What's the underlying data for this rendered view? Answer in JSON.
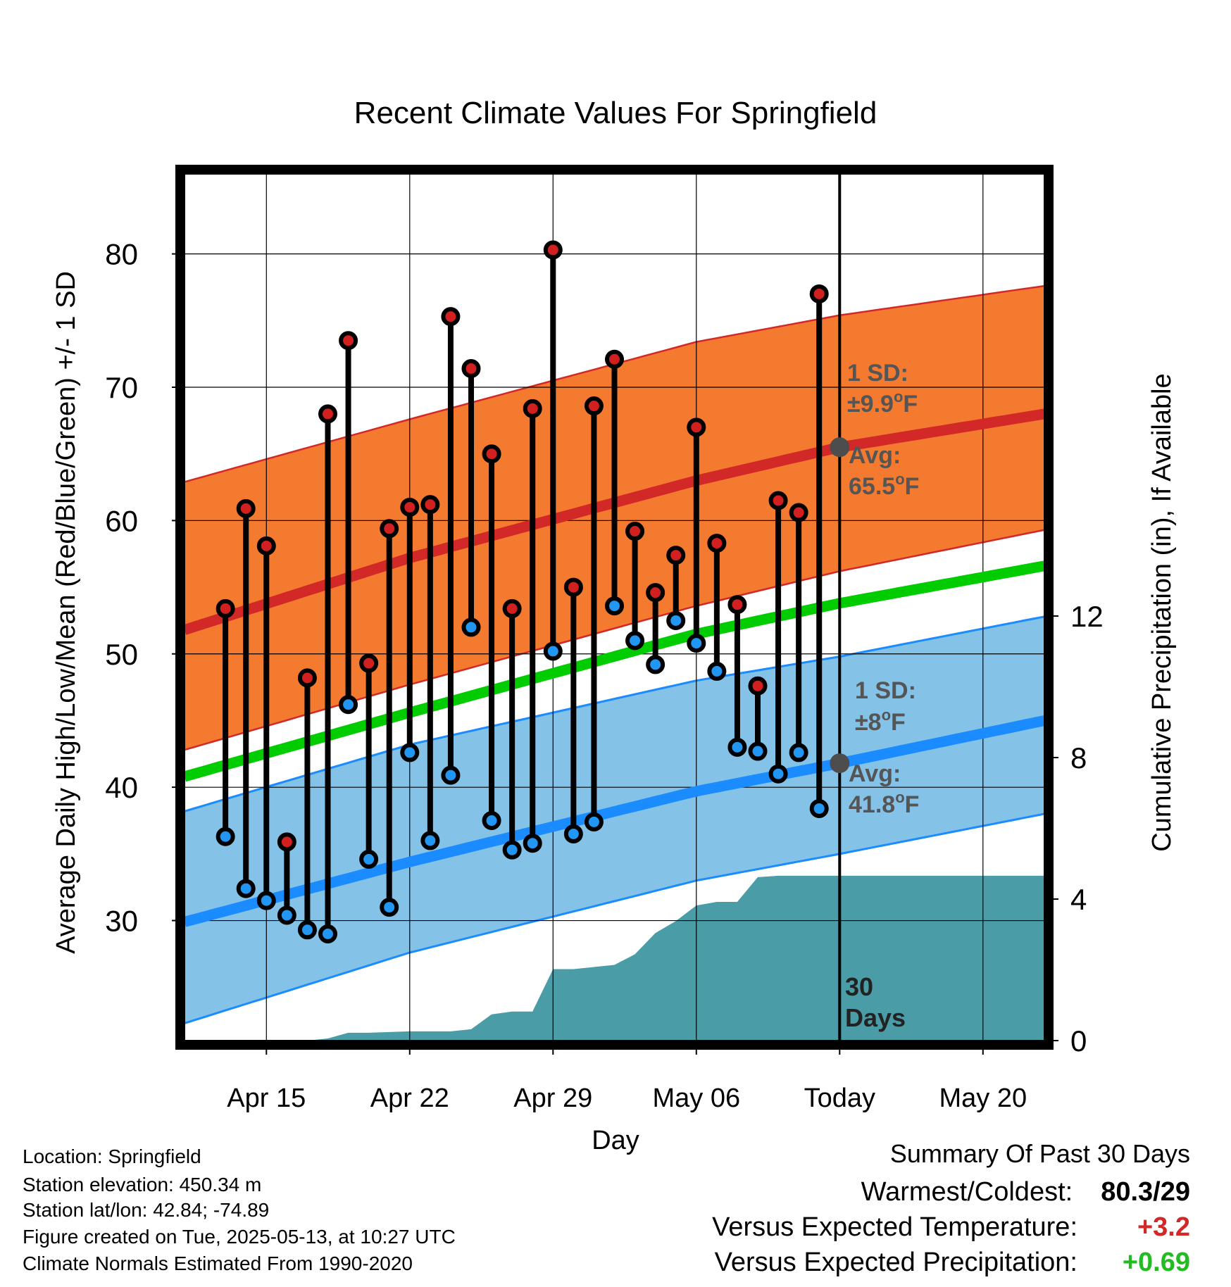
{
  "chart_data": {
    "type": "line",
    "title": "Recent Climate Values For Springfield",
    "xlabel": "Day",
    "ylabel": "Average Daily High/Low/Mean (Red/Blue/Green) +/- 1 SD",
    "y2label": "Cumulative Precipitation (in), If Available",
    "ylim": [
      21,
      86
    ],
    "y2lim": [
      0,
      24.5
    ],
    "yticks": [
      30,
      40,
      50,
      60,
      70,
      80
    ],
    "y2ticks": [
      0,
      4,
      8,
      12
    ],
    "x_range": [
      "2025-04-11",
      "2025-05-23"
    ],
    "x_ticks": [
      {
        "date": "2025-04-15",
        "label": "Apr 15"
      },
      {
        "date": "2025-04-22",
        "label": "Apr 22"
      },
      {
        "date": "2025-04-29",
        "label": "Apr 29"
      },
      {
        "date": "2025-05-06",
        "label": "May 06"
      },
      {
        "date": "2025-05-13",
        "label": "Today"
      },
      {
        "date": "2025-05-20",
        "label": "May 20"
      }
    ],
    "today": "2025-05-13",
    "period_label": "30\nDays",
    "daily_high": [
      {
        "date": "2025-04-13",
        "value": 53.4
      },
      {
        "date": "2025-04-14",
        "value": 60.9
      },
      {
        "date": "2025-04-15",
        "value": 58.1
      },
      {
        "date": "2025-04-16",
        "value": 35.9
      },
      {
        "date": "2025-04-17",
        "value": 48.2
      },
      {
        "date": "2025-04-18",
        "value": 68.0
      },
      {
        "date": "2025-04-19",
        "value": 73.5
      },
      {
        "date": "2025-04-20",
        "value": 49.3
      },
      {
        "date": "2025-04-21",
        "value": 59.4
      },
      {
        "date": "2025-04-22",
        "value": 61.0
      },
      {
        "date": "2025-04-23",
        "value": 61.2
      },
      {
        "date": "2025-04-24",
        "value": 75.3
      },
      {
        "date": "2025-04-25",
        "value": 71.4
      },
      {
        "date": "2025-04-26",
        "value": 65.0
      },
      {
        "date": "2025-04-27",
        "value": 53.4
      },
      {
        "date": "2025-04-28",
        "value": 68.4
      },
      {
        "date": "2025-04-29",
        "value": 80.3
      },
      {
        "date": "2025-04-30",
        "value": 55.0
      },
      {
        "date": "2025-05-01",
        "value": 68.6
      },
      {
        "date": "2025-05-02",
        "value": 72.1
      },
      {
        "date": "2025-05-03",
        "value": 59.2
      },
      {
        "date": "2025-05-04",
        "value": 54.6
      },
      {
        "date": "2025-05-05",
        "value": 57.4
      },
      {
        "date": "2025-05-06",
        "value": 67.0
      },
      {
        "date": "2025-05-07",
        "value": 58.3
      },
      {
        "date": "2025-05-08",
        "value": 53.7
      },
      {
        "date": "2025-05-09",
        "value": 47.6
      },
      {
        "date": "2025-05-10",
        "value": 61.5
      },
      {
        "date": "2025-05-11",
        "value": 60.6
      },
      {
        "date": "2025-05-12",
        "value": 77.0
      }
    ],
    "daily_low": [
      {
        "date": "2025-04-13",
        "value": 36.3
      },
      {
        "date": "2025-04-14",
        "value": 32.4
      },
      {
        "date": "2025-04-15",
        "value": 31.5
      },
      {
        "date": "2025-04-16",
        "value": 30.4
      },
      {
        "date": "2025-04-17",
        "value": 29.3
      },
      {
        "date": "2025-04-18",
        "value": 29.0
      },
      {
        "date": "2025-04-19",
        "value": 46.2
      },
      {
        "date": "2025-04-20",
        "value": 34.6
      },
      {
        "date": "2025-04-21",
        "value": 31.0
      },
      {
        "date": "2025-04-22",
        "value": 42.6
      },
      {
        "date": "2025-04-23",
        "value": 36.0
      },
      {
        "date": "2025-04-24",
        "value": 40.9
      },
      {
        "date": "2025-04-25",
        "value": 52.0
      },
      {
        "date": "2025-04-26",
        "value": 37.5
      },
      {
        "date": "2025-04-27",
        "value": 35.3
      },
      {
        "date": "2025-04-28",
        "value": 35.8
      },
      {
        "date": "2025-04-29",
        "value": 50.2
      },
      {
        "date": "2025-04-30",
        "value": 36.5
      },
      {
        "date": "2025-05-01",
        "value": 37.4
      },
      {
        "date": "2025-05-02",
        "value": 53.6
      },
      {
        "date": "2025-05-03",
        "value": 51.0
      },
      {
        "date": "2025-05-04",
        "value": 49.2
      },
      {
        "date": "2025-05-05",
        "value": 52.5
      },
      {
        "date": "2025-05-06",
        "value": 50.8
      },
      {
        "date": "2025-05-07",
        "value": 48.7
      },
      {
        "date": "2025-05-08",
        "value": 43.0
      },
      {
        "date": "2025-05-09",
        "value": 42.7
      },
      {
        "date": "2025-05-10",
        "value": 41.0
      },
      {
        "date": "2025-05-11",
        "value": 42.6
      },
      {
        "date": "2025-05-12",
        "value": 38.4
      }
    ],
    "normal_high": {
      "x": [
        "2025-04-11",
        "2025-04-22",
        "2025-05-06",
        "2025-05-13",
        "2025-05-23"
      ],
      "avg": [
        51.8,
        57.2,
        63.0,
        65.5,
        68.0
      ],
      "upper": [
        62.9,
        67.6,
        73.4,
        75.4,
        77.6
      ],
      "lower": [
        42.8,
        47.7,
        53.6,
        56.2,
        59.3
      ]
    },
    "normal_mean": {
      "x": [
        "2025-04-11",
        "2025-04-22",
        "2025-05-06",
        "2025-05-13",
        "2025-05-23"
      ],
      "avg": [
        40.8,
        45.6,
        51.5,
        53.8,
        56.6
      ]
    },
    "normal_low": {
      "x": [
        "2025-04-11",
        "2025-04-22",
        "2025-05-06",
        "2025-05-13",
        "2025-05-23"
      ],
      "avg": [
        29.9,
        34.4,
        39.7,
        41.8,
        45.0
      ],
      "upper": [
        38.2,
        43.2,
        48.0,
        49.8,
        52.8
      ],
      "lower": [
        22.3,
        27.6,
        33.0,
        35.0,
        38.0
      ]
    },
    "cumulative_precip": [
      {
        "date": "2025-04-11",
        "value": 0
      },
      {
        "date": "2025-04-17",
        "value": 0
      },
      {
        "date": "2025-04-18",
        "value": 0.06
      },
      {
        "date": "2025-04-19",
        "value": 0.22
      },
      {
        "date": "2025-04-20",
        "value": 0.22
      },
      {
        "date": "2025-04-21",
        "value": 0.24
      },
      {
        "date": "2025-04-22",
        "value": 0.26
      },
      {
        "date": "2025-04-23",
        "value": 0.26
      },
      {
        "date": "2025-04-24",
        "value": 0.26
      },
      {
        "date": "2025-04-25",
        "value": 0.32
      },
      {
        "date": "2025-04-26",
        "value": 0.74
      },
      {
        "date": "2025-04-27",
        "value": 0.82
      },
      {
        "date": "2025-04-28",
        "value": 0.82
      },
      {
        "date": "2025-04-29",
        "value": 2.02
      },
      {
        "date": "2025-04-30",
        "value": 2.02
      },
      {
        "date": "2025-05-01",
        "value": 2.08
      },
      {
        "date": "2025-05-02",
        "value": 2.14
      },
      {
        "date": "2025-05-03",
        "value": 2.44
      },
      {
        "date": "2025-05-04",
        "value": 3.04
      },
      {
        "date": "2025-05-05",
        "value": 3.38
      },
      {
        "date": "2025-05-06",
        "value": 3.82
      },
      {
        "date": "2025-05-07",
        "value": 3.92
      },
      {
        "date": "2025-05-08",
        "value": 3.92
      },
      {
        "date": "2025-05-09",
        "value": 4.62
      },
      {
        "date": "2025-05-10",
        "value": 4.66
      },
      {
        "date": "2025-05-23",
        "value": 4.66
      }
    ],
    "annotations": {
      "high_sd": "1 SD:",
      "high_sd_value": "±9.9",
      "high_avg": "Avg:",
      "high_avg_value": "65.5",
      "low_sd": "1 SD:",
      "low_sd_value": "±8",
      "low_avg": "Avg:",
      "low_avg_value": "41.8",
      "unit": "F"
    },
    "colors": {
      "high_band": "#f47a30",
      "high_line": "#d22828",
      "mean_line": "#00cc00",
      "low_band": "#84c2e8",
      "low_line": "#1a8cff",
      "precip": "#4a9ca6",
      "high_marker": "#d21f1f",
      "low_marker": "#2196f3",
      "annotation": "#555555"
    }
  },
  "info": {
    "location": "Location: Springfield",
    "elevation": "Station elevation: 450.34 m",
    "latlon": "Station lat/lon: 42.84; -74.89",
    "created": "Figure created on Tue, 2025-05-13, at 10:27 UTC",
    "normals": "Climate Normals Estimated From 1990-2020"
  },
  "summary": {
    "title": "Summary Of Past 30 Days",
    "warmest_coldest_label": "Warmest/Coldest:",
    "warmest_coldest_value": "80.3/29",
    "temp_label": "Versus Expected Temperature:",
    "temp_value": "+3.2",
    "temp_color": "#d22828",
    "precip_label": "Versus Expected Precipitation:",
    "precip_value": "+0.69",
    "precip_color": "#22bb22"
  }
}
